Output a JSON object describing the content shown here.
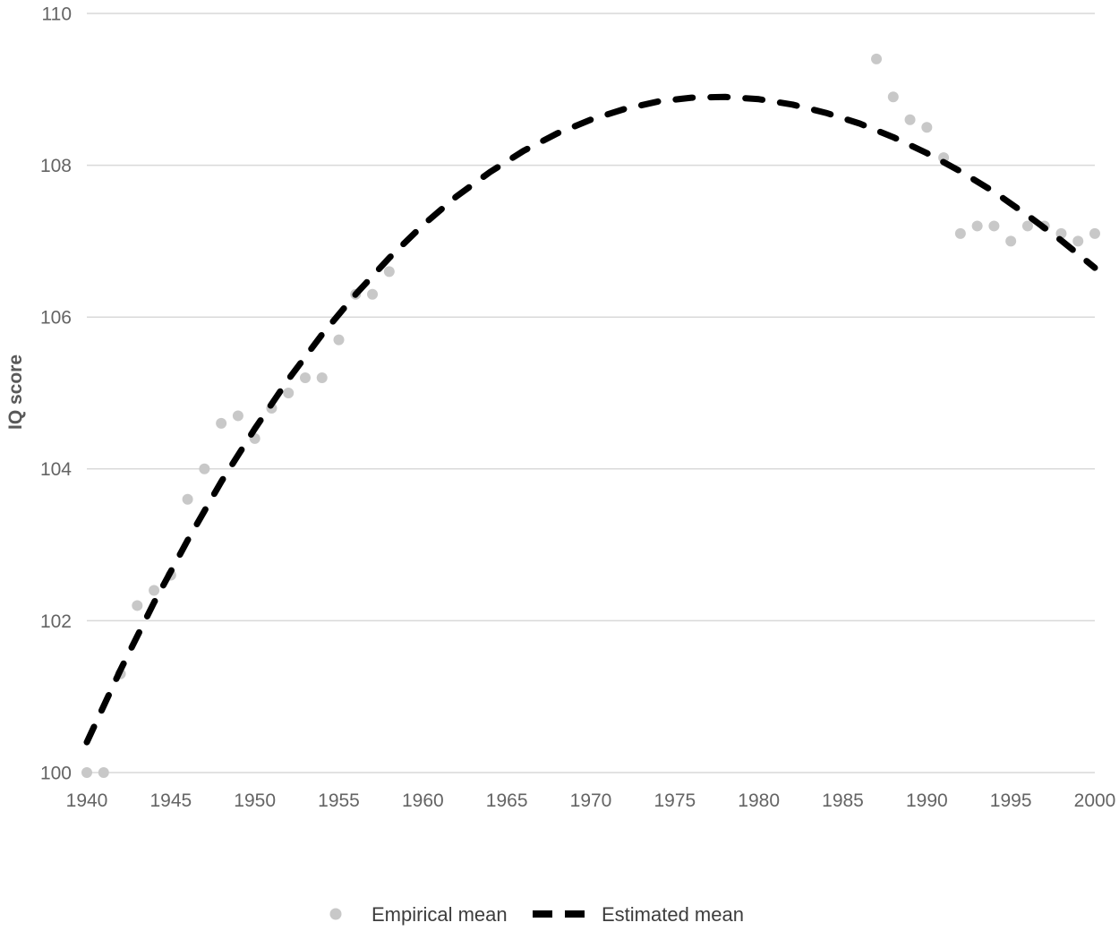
{
  "chart": {
    "y_axis_title": "IQ score"
  },
  "colors": {
    "background": "#ffffff",
    "gridline": "#d9d9d9",
    "tick_label": "#646464",
    "axis_title": "#595959",
    "legend_text": "#3d3d3d",
    "dot": "#c8c8c8",
    "dash": "#000000"
  },
  "chart_data": {
    "type": "scatter",
    "title": "",
    "xlabel": "",
    "ylabel": "IQ score",
    "xlim": [
      1940,
      2000
    ],
    "ylim": [
      100,
      110
    ],
    "x_ticks": [
      1940,
      1945,
      1950,
      1955,
      1960,
      1965,
      1970,
      1975,
      1980,
      1985,
      1990,
      1995,
      2000
    ],
    "y_ticks": [
      100,
      102,
      104,
      106,
      108,
      110
    ],
    "grid": "horizontal-only",
    "legend_position": "bottom-center",
    "series": [
      {
        "name": "Empirical mean",
        "type": "scatter",
        "marker": "circle",
        "color": "#c8c8c8",
        "points": [
          [
            1940,
            100.0
          ],
          [
            1941,
            100.0
          ],
          [
            1942,
            101.3
          ],
          [
            1943,
            102.2
          ],
          [
            1944,
            102.4
          ],
          [
            1945,
            102.6
          ],
          [
            1946,
            103.6
          ],
          [
            1947,
            104.0
          ],
          [
            1948,
            104.6
          ],
          [
            1949,
            104.7
          ],
          [
            1950,
            104.4
          ],
          [
            1951,
            104.8
          ],
          [
            1952,
            105.0
          ],
          [
            1953,
            105.2
          ],
          [
            1954,
            105.2
          ],
          [
            1955,
            105.7
          ],
          [
            1956,
            106.3
          ],
          [
            1957,
            106.3
          ],
          [
            1958,
            106.6
          ],
          [
            1987,
            109.4
          ],
          [
            1988,
            108.9
          ],
          [
            1989,
            108.6
          ],
          [
            1990,
            108.5
          ],
          [
            1991,
            108.1
          ],
          [
            1992,
            107.1
          ],
          [
            1993,
            107.2
          ],
          [
            1994,
            107.2
          ],
          [
            1995,
            107.0
          ],
          [
            1996,
            107.2
          ],
          [
            1997,
            107.2
          ],
          [
            1998,
            107.1
          ],
          [
            1999,
            107.0
          ],
          [
            2000,
            107.1
          ]
        ]
      },
      {
        "name": "Estimated mean",
        "type": "dashed-line",
        "color": "#000000",
        "points": [
          [
            1940,
            100.4
          ],
          [
            1942,
            101.35
          ],
          [
            1944,
            102.24
          ],
          [
            1946,
            103.06
          ],
          [
            1948,
            103.83
          ],
          [
            1950,
            104.53
          ],
          [
            1952,
            105.18
          ],
          [
            1954,
            105.77
          ],
          [
            1956,
            106.3
          ],
          [
            1958,
            106.78
          ],
          [
            1960,
            107.21
          ],
          [
            1962,
            107.59
          ],
          [
            1964,
            107.91
          ],
          [
            1966,
            108.19
          ],
          [
            1968,
            108.42
          ],
          [
            1970,
            108.6
          ],
          [
            1972,
            108.74
          ],
          [
            1974,
            108.84
          ],
          [
            1976,
            108.89
          ],
          [
            1978,
            108.9
          ],
          [
            1980,
            108.87
          ],
          [
            1982,
            108.8
          ],
          [
            1984,
            108.69
          ],
          [
            1986,
            108.55
          ],
          [
            1988,
            108.37
          ],
          [
            1990,
            108.16
          ],
          [
            1992,
            107.92
          ],
          [
            1994,
            107.65
          ],
          [
            1996,
            107.34
          ],
          [
            1998,
            107.01
          ],
          [
            2000,
            106.65
          ]
        ]
      }
    ]
  }
}
